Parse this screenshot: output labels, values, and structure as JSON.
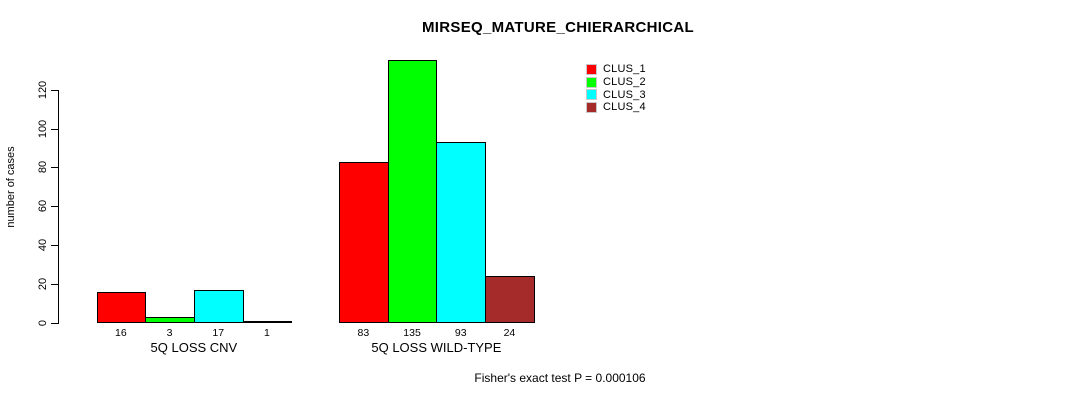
{
  "chart_data": {
    "type": "bar",
    "title": "MIRSEQ_MATURE_CHIERARCHICAL",
    "ylabel": "number of cases",
    "xlabel": "",
    "yticks": [
      0,
      20,
      40,
      60,
      80,
      100,
      120
    ],
    "ylim": [
      0,
      120
    ],
    "grid": false,
    "legend_position": "top-right",
    "categories": [
      "5Q LOSS CNV",
      "5Q LOSS WILD-TYPE"
    ],
    "series": [
      {
        "name": "CLUS_1",
        "color": "#ff0000",
        "values": [
          16,
          83
        ]
      },
      {
        "name": "CLUS_2",
        "color": "#00ff00",
        "values": [
          3,
          135
        ]
      },
      {
        "name": "CLUS_3",
        "color": "#00ffff",
        "values": [
          17,
          93
        ]
      },
      {
        "name": "CLUS_4",
        "color": "#a52a2a",
        "values": [
          1,
          24
        ]
      }
    ],
    "bar_value_labels": [
      [
        16,
        3,
        17,
        1
      ],
      [
        83,
        135,
        93,
        24
      ]
    ],
    "annotation": "Fisher's exact test P = 0.000106",
    "colors": {
      "background": "#ffffff",
      "axis": "#000000",
      "text": "#000000",
      "bar_border": "#000000"
    }
  }
}
